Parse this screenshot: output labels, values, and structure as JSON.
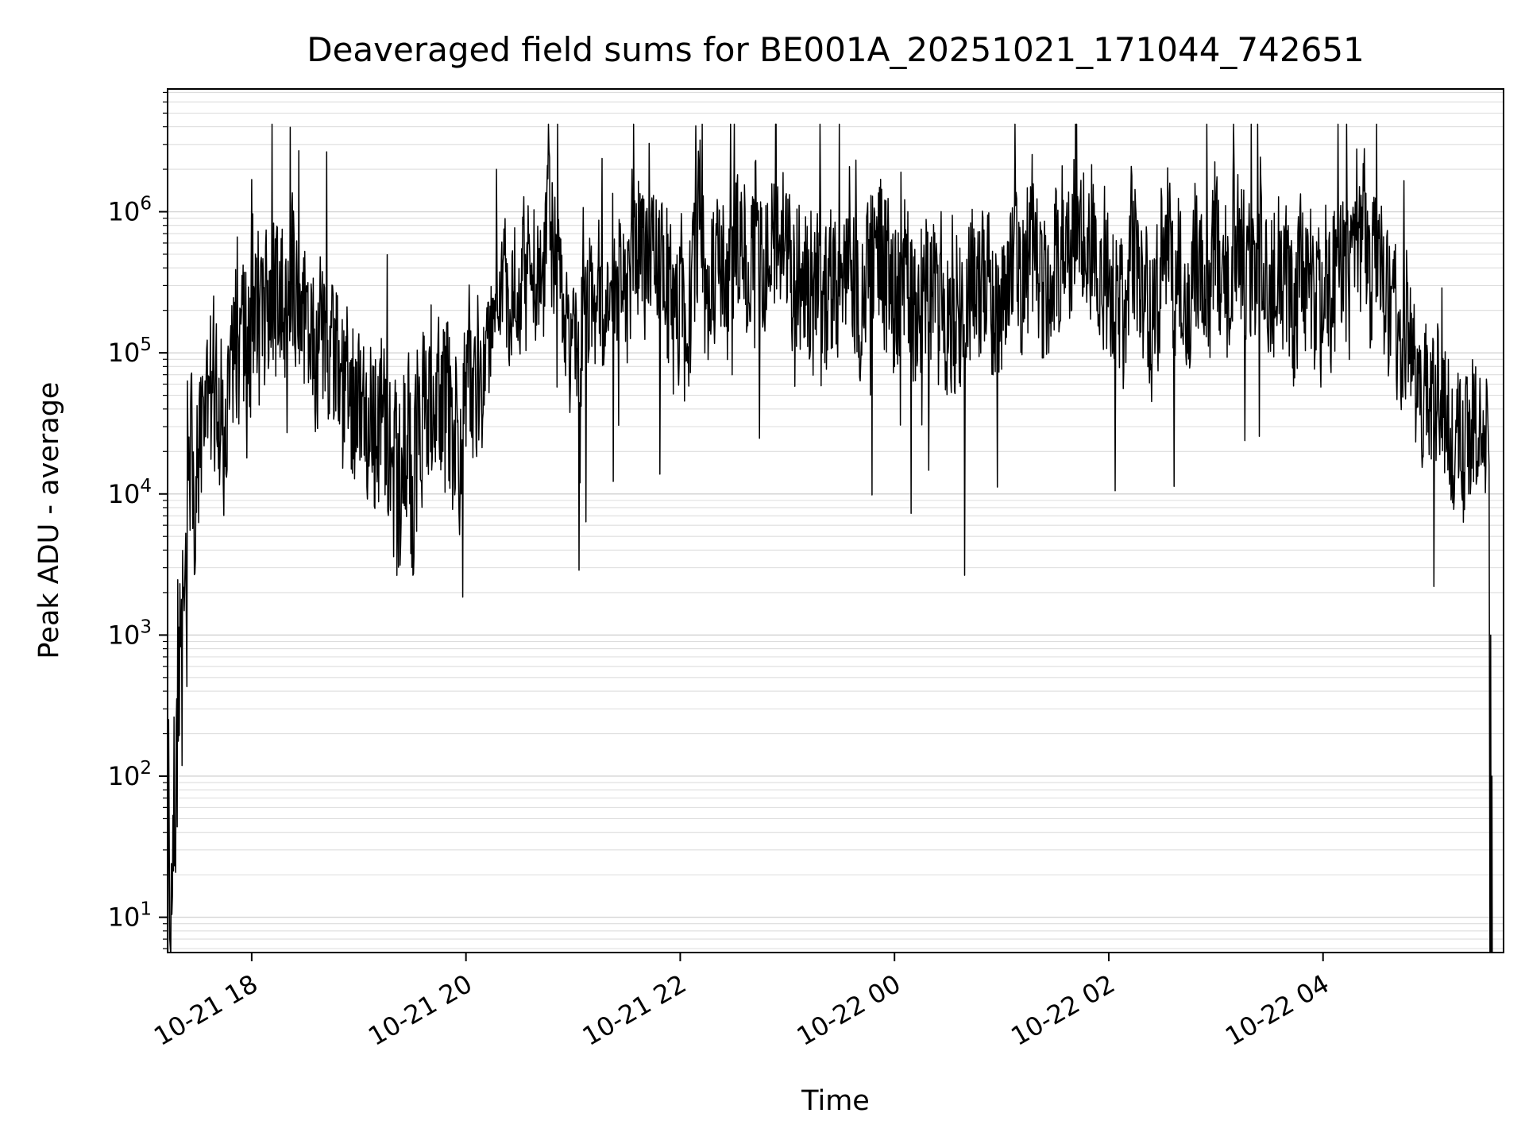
{
  "chart_data": {
    "type": "line",
    "title": "Deaveraged field sums for BE001A_20251021_171044_742651",
    "xlabel": "Time",
    "ylabel": "Peak ADU - average",
    "yscale": "log",
    "grid": true,
    "legend": null,
    "line_color": "#000000",
    "line_width": 1.5,
    "background_color": "#ffffff",
    "grid_color": "#dddddd",
    "ylim_exp": [
      0.75,
      6.87
    ],
    "xlim_hours": [
      0,
      12.47
    ],
    "x_start_time": "10-21 17:13",
    "x_ticks": [
      {
        "label": "10-21 18",
        "t": 0.785
      },
      {
        "label": "10-21 20",
        "t": 2.785
      },
      {
        "label": "10-21 22",
        "t": 4.785
      },
      {
        "label": "10-22 00",
        "t": 6.785
      },
      {
        "label": "10-22 02",
        "t": 8.785
      },
      {
        "label": "10-22 04",
        "t": 10.785
      }
    ],
    "y_ticks": [
      {
        "base": "10",
        "exp": "1"
      },
      {
        "base": "10",
        "exp": "2"
      },
      {
        "base": "10",
        "exp": "3"
      },
      {
        "base": "10",
        "exp": "4"
      },
      {
        "base": "10",
        "exp": "5"
      },
      {
        "base": "10",
        "exp": "6"
      }
    ],
    "series_name": "peak_adu_average",
    "envelope_log10": [
      [
        0.0,
        0.9,
        0.25
      ],
      [
        0.05,
        1.6,
        0.7
      ],
      [
        0.12,
        2.6,
        0.9
      ],
      [
        0.22,
        3.8,
        0.7
      ],
      [
        0.35,
        4.5,
        0.55
      ],
      [
        0.6,
        4.9,
        0.55
      ],
      [
        0.9,
        5.2,
        0.55
      ],
      [
        1.1,
        5.3,
        0.5
      ],
      [
        1.4,
        5.0,
        0.5
      ],
      [
        1.8,
        4.7,
        0.55
      ],
      [
        2.2,
        4.5,
        0.65
      ],
      [
        2.6,
        4.6,
        0.6
      ],
      [
        2.9,
        5.0,
        0.5
      ],
      [
        3.05,
        5.8,
        0.3
      ],
      [
        3.25,
        5.5,
        0.4
      ],
      [
        3.7,
        5.5,
        0.42
      ],
      [
        4.2,
        5.4,
        0.48
      ],
      [
        4.6,
        5.6,
        0.5
      ],
      [
        5.0,
        5.6,
        0.5
      ],
      [
        5.5,
        5.7,
        0.45
      ],
      [
        6.0,
        5.6,
        0.5
      ],
      [
        6.6,
        5.6,
        0.5
      ],
      [
        7.0,
        5.4,
        0.55
      ],
      [
        7.5,
        5.6,
        0.5
      ],
      [
        8.1,
        5.6,
        0.5
      ],
      [
        8.7,
        5.5,
        0.52
      ],
      [
        9.3,
        5.6,
        0.5
      ],
      [
        9.8,
        5.7,
        0.5
      ],
      [
        10.4,
        5.6,
        0.5
      ],
      [
        10.9,
        5.45,
        0.5
      ],
      [
        11.2,
        5.55,
        0.5
      ],
      [
        11.5,
        5.2,
        0.5
      ],
      [
        11.75,
        4.7,
        0.5
      ],
      [
        12.0,
        4.5,
        0.45
      ],
      [
        12.18,
        4.6,
        0.5
      ],
      [
        12.32,
        4.35,
        0.45
      ]
    ],
    "head_points_log10": [
      [
        0.0,
        0.0
      ],
      [
        0.01,
        2.4
      ],
      [
        0.02,
        0.85
      ]
    ],
    "tail_points_log10": [
      [
        12.335,
        4.2
      ],
      [
        12.345,
        0.0
      ],
      [
        12.35,
        3.0
      ],
      [
        12.355,
        0.0
      ],
      [
        12.362,
        2.0
      ],
      [
        12.366,
        0.0
      ]
    ],
    "clip_top_exp": 6.62,
    "noise_seed": 7,
    "points_per_hour": 200
  },
  "layout_labels": {
    "note": ""
  }
}
